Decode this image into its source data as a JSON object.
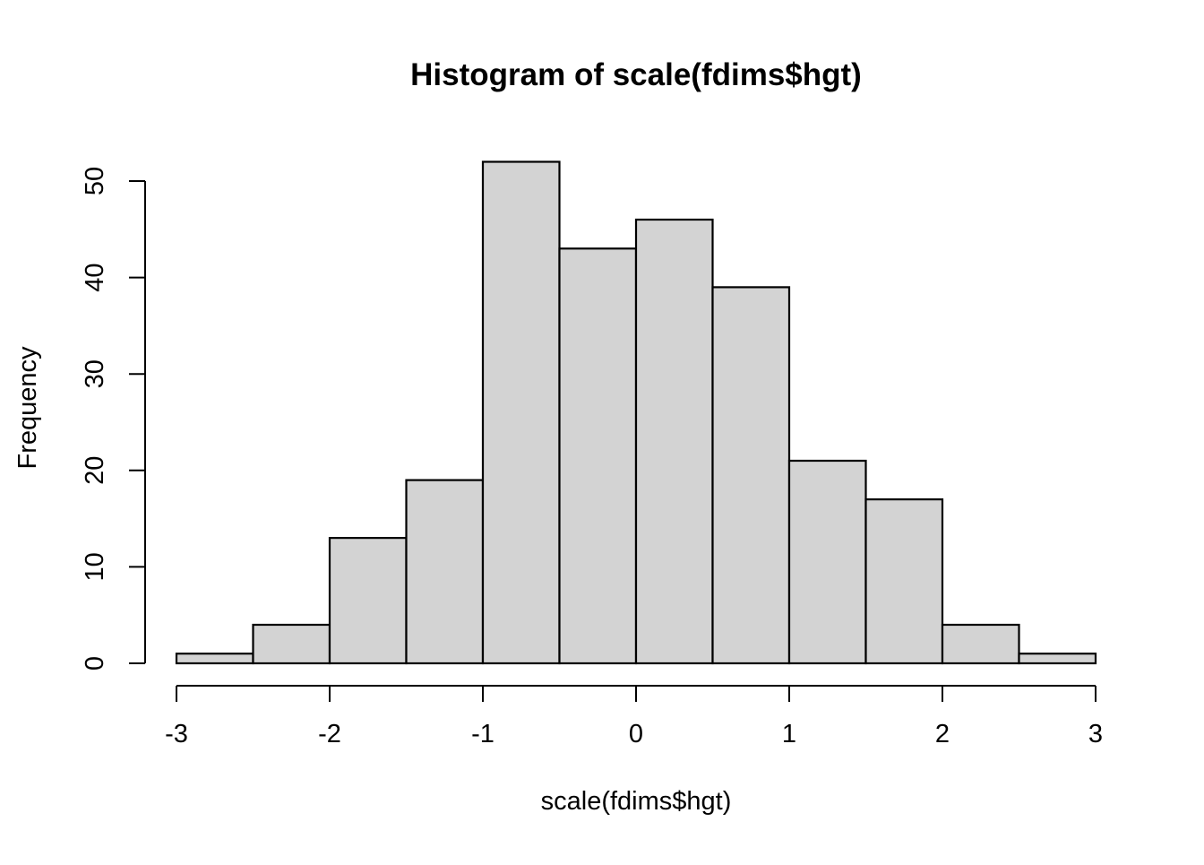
{
  "chart_data": {
    "type": "bar",
    "subtype": "histogram",
    "title": "Histogram of scale(fdims$hgt)",
    "xlabel": "scale(fdims$hgt)",
    "ylabel": "Frequency",
    "bin_edges": [
      -3,
      -2.5,
      -2,
      -1.5,
      -1,
      -0.5,
      0,
      0.5,
      1,
      1.5,
      2,
      2.5,
      3
    ],
    "counts": [
      1,
      4,
      13,
      19,
      52,
      43,
      46,
      39,
      21,
      17,
      4,
      1
    ],
    "x_tick_values": [
      -3,
      -2,
      -1,
      0,
      1,
      2,
      3
    ],
    "x_tick_labels": [
      "-3",
      "-2",
      "-1",
      "0",
      "1",
      "2",
      "3"
    ],
    "y_tick_values": [
      0,
      10,
      20,
      30,
      40,
      50
    ],
    "y_tick_labels": [
      "0",
      "10",
      "20",
      "30",
      "40",
      "50"
    ],
    "xlim": [
      -3,
      3
    ],
    "ylim": [
      0,
      52
    ],
    "grid": "off",
    "legend": "none",
    "bar_fill_color": "#d3d3d3",
    "bar_border_color": "#000000",
    "axis_color": "#000000",
    "text_color": "#000000",
    "background_color": "#ffffff"
  }
}
